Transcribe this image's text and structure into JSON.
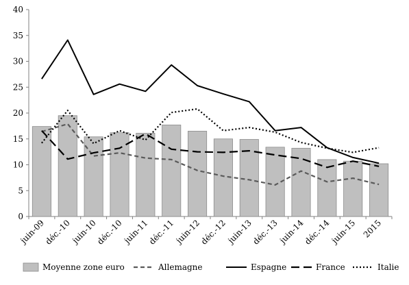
{
  "chart_data": {
    "type": "bar+line",
    "title": "",
    "xlabel": "",
    "ylabel": "",
    "ylim": [
      0,
      40
    ],
    "yticks": [
      0,
      5,
      10,
      15,
      20,
      25,
      30,
      35,
      40
    ],
    "grid": false,
    "legend_position": "bottom",
    "categories": [
      "juin-09",
      "déc.-10",
      "juin-10",
      "déc.-10",
      "juin-11",
      "déc.-11",
      "juin-12",
      "déc.-12",
      "juin-13",
      "déc.-13",
      "juin-14",
      "déc.-14",
      "juin-15",
      "2015"
    ],
    "bar_series": {
      "name": "Moyenne zone euro",
      "color": "#bfbfbf",
      "values": [
        17.4,
        19.5,
        15.4,
        16.2,
        16.1,
        17.7,
        16.5,
        15.0,
        14.9,
        13.4,
        13.2,
        11.0,
        10.7,
        10.2
      ]
    },
    "line_series": [
      {
        "name": "Allemagne",
        "style": "dashed-gray",
        "values": [
          16.4,
          17.9,
          11.7,
          12.3,
          11.3,
          11.0,
          8.9,
          7.8,
          7.1,
          6.1,
          8.8,
          6.7,
          7.4,
          6.2
        ]
      },
      {
        "name": "Espagne",
        "style": "solid",
        "values": [
          26.6,
          34.1,
          23.6,
          25.6,
          24.2,
          29.3,
          25.3,
          23.7,
          22.2,
          16.6,
          17.2,
          13.3,
          11.4,
          10.3
        ]
      },
      {
        "name": "France",
        "style": "long-dash",
        "values": [
          16.6,
          11.1,
          12.3,
          13.2,
          16.0,
          13.0,
          12.5,
          12.4,
          12.7,
          11.9,
          11.2,
          9.5,
          10.7,
          9.7
        ]
      },
      {
        "name": "Italie",
        "style": "dotted",
        "values": [
          14.2,
          20.5,
          14.1,
          16.6,
          14.8,
          20.1,
          20.8,
          16.6,
          17.2,
          16.3,
          14.3,
          13.2,
          12.4,
          13.3
        ]
      }
    ]
  }
}
